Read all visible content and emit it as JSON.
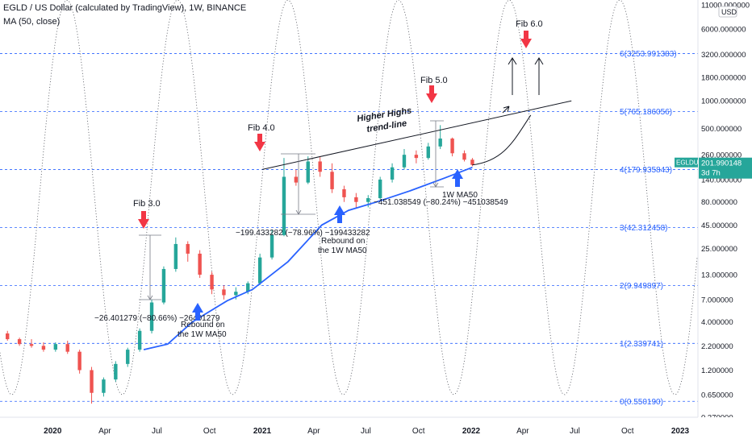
{
  "header": {
    "symbol_line": "EGLD / US Dollar (calculated by TradingView), 1W, BINANCE",
    "indicator_line": "MA (50, close)"
  },
  "price_axis": {
    "currency": "USD",
    "ticks": [
      "11000.000000",
      "6000.000000",
      "3200.000000",
      "1800.000000",
      "1000.000000",
      "500.000000",
      "260.000000",
      "140.000000",
      "80.000000",
      "45.000000",
      "25.000000",
      "13.000000",
      "7.000000",
      "4.000000",
      "2.200000",
      "1.200000",
      "0.650000",
      "0.370000"
    ],
    "last_price_label": "EGLDUSD",
    "last_price_value": "201.990148",
    "countdown": "3d 7h"
  },
  "time_axis": {
    "ticks": [
      "2020",
      "Apr",
      "Jul",
      "Oct",
      "2021",
      "Apr",
      "Jul",
      "Oct",
      "2022",
      "Apr",
      "Jul",
      "Oct",
      "2023"
    ]
  },
  "fib_levels": [
    {
      "label": "6(3253.991383)",
      "value": 3253.991383
    },
    {
      "label": "5(765.186056)",
      "value": 765.186056
    },
    {
      "label": "4(179.935843)",
      "value": 179.935843
    },
    {
      "label": "3(42.312458)",
      "value": 42.312458
    },
    {
      "label": "2(9.949897)",
      "value": 9.949897
    },
    {
      "label": "1(2.339741)",
      "value": 2.339741
    },
    {
      "label": "0(0.550190)",
      "value": 0.55019
    }
  ],
  "annotations": {
    "fib3": "Fib 3.0",
    "fib4": "Fib 4.0",
    "fib5": "Fib 5.0",
    "fib6": "Fib 6.0",
    "trendline_1": "Higher Highs",
    "trendline_2": "trend-line",
    "measure1": "−26.401279 (−80.66%) −26401279",
    "measure2": "−199.433282 (−78.96%) −199433282",
    "measure3": "−451.038549 (−80.24%) −451038549",
    "rebound1_a": "Rebound on",
    "rebound1_b": "the 1W MA50",
    "rebound2_a": "Rebound on",
    "rebound2_b": "the 1W MA50",
    "ma_label": "1W MA50"
  },
  "colors": {
    "bull": "#26a69a",
    "bear": "#ef5350",
    "ma": "#2962ff",
    "fib": "#2962ff",
    "arrow_red": "#f23645",
    "arrow_blue": "#2962ff",
    "badge": "#26a69a"
  },
  "chart_data": {
    "type": "candlestick",
    "title": "EGLD / US Dollar (calculated by TradingView), 1W, BINANCE",
    "scale": "log",
    "ylim": [
      0.37,
      11000
    ],
    "xlim": [
      "2019-10-01",
      "2023-02-01"
    ],
    "candles": [
      {
        "date": "2019-10-14",
        "o": 3.0,
        "h": 3.2,
        "l": 2.5,
        "c": 2.6
      },
      {
        "date": "2019-11-04",
        "o": 2.6,
        "h": 2.7,
        "l": 2.2,
        "c": 2.3
      },
      {
        "date": "2019-11-25",
        "o": 2.3,
        "h": 2.6,
        "l": 2.1,
        "c": 2.2
      },
      {
        "date": "2019-12-16",
        "o": 2.2,
        "h": 2.4,
        "l": 1.9,
        "c": 2.0
      },
      {
        "date": "2020-01-06",
        "o": 2.0,
        "h": 2.4,
        "l": 1.9,
        "c": 2.3
      },
      {
        "date": "2020-01-27",
        "o": 2.3,
        "h": 2.5,
        "l": 1.8,
        "c": 1.9
      },
      {
        "date": "2020-02-17",
        "o": 1.9,
        "h": 2.0,
        "l": 1.1,
        "c": 1.2
      },
      {
        "date": "2020-03-09",
        "o": 1.2,
        "h": 1.3,
        "l": 0.52,
        "c": 0.68
      },
      {
        "date": "2020-03-30",
        "o": 0.68,
        "h": 1.0,
        "l": 0.62,
        "c": 0.95
      },
      {
        "date": "2020-04-20",
        "o": 0.95,
        "h": 1.5,
        "l": 0.9,
        "c": 1.4
      },
      {
        "date": "2020-05-11",
        "o": 1.4,
        "h": 2.1,
        "l": 1.3,
        "c": 2.0
      },
      {
        "date": "2020-06-01",
        "o": 2.0,
        "h": 3.4,
        "l": 1.9,
        "c": 3.2
      },
      {
        "date": "2020-06-22",
        "o": 3.2,
        "h": 7.0,
        "l": 3.0,
        "c": 6.5
      },
      {
        "date": "2020-07-13",
        "o": 6.5,
        "h": 16.0,
        "l": 6.2,
        "c": 15.0
      },
      {
        "date": "2020-08-03",
        "o": 15.0,
        "h": 33.0,
        "l": 14.0,
        "c": 28.0
      },
      {
        "date": "2020-08-24",
        "o": 28.0,
        "h": 30.0,
        "l": 18.0,
        "c": 22.0
      },
      {
        "date": "2020-09-14",
        "o": 22.0,
        "h": 24.0,
        "l": 12.0,
        "c": 13.0
      },
      {
        "date": "2020-10-05",
        "o": 13.0,
        "h": 14.0,
        "l": 8.0,
        "c": 9.0
      },
      {
        "date": "2020-10-26",
        "o": 9.0,
        "h": 10.0,
        "l": 7.0,
        "c": 7.8
      },
      {
        "date": "2020-11-16",
        "o": 7.8,
        "h": 9.5,
        "l": 7.0,
        "c": 8.5
      },
      {
        "date": "2020-12-07",
        "o": 8.5,
        "h": 11.0,
        "l": 8.0,
        "c": 10.5
      },
      {
        "date": "2020-12-28",
        "o": 10.5,
        "h": 22.0,
        "l": 10.0,
        "c": 20.0
      },
      {
        "date": "2021-01-18",
        "o": 20.0,
        "h": 40.0,
        "l": 19.0,
        "c": 35.0
      },
      {
        "date": "2021-02-08",
        "o": 35.0,
        "h": 240.0,
        "l": 34.0,
        "c": 150.0
      },
      {
        "date": "2021-03-01",
        "o": 150.0,
        "h": 180.0,
        "l": 120.0,
        "c": 130.0
      },
      {
        "date": "2021-03-22",
        "o": 130.0,
        "h": 250.0,
        "l": 125.0,
        "c": 220.0
      },
      {
        "date": "2021-04-12",
        "o": 220.0,
        "h": 245.0,
        "l": 150.0,
        "c": 170.0
      },
      {
        "date": "2021-05-03",
        "o": 170.0,
        "h": 210.0,
        "l": 100.0,
        "c": 110.0
      },
      {
        "date": "2021-05-24",
        "o": 110.0,
        "h": 120.0,
        "l": 80.0,
        "c": 90.0
      },
      {
        "date": "2021-06-14",
        "o": 90.0,
        "h": 100.0,
        "l": 68.0,
        "c": 80.0
      },
      {
        "date": "2021-07-05",
        "o": 80.0,
        "h": 95.0,
        "l": 70.0,
        "c": 88.0
      },
      {
        "date": "2021-07-26",
        "o": 88.0,
        "h": 150.0,
        "l": 85.0,
        "c": 140.0
      },
      {
        "date": "2021-08-16",
        "o": 140.0,
        "h": 210.0,
        "l": 130.0,
        "c": 190.0
      },
      {
        "date": "2021-09-06",
        "o": 190.0,
        "h": 300.0,
        "l": 180.0,
        "c": 260.0
      },
      {
        "date": "2021-09-27",
        "o": 260.0,
        "h": 290.0,
        "l": 210.0,
        "c": 240.0
      },
      {
        "date": "2021-10-18",
        "o": 240.0,
        "h": 350.0,
        "l": 230.0,
        "c": 320.0
      },
      {
        "date": "2021-11-08",
        "o": 320.0,
        "h": 545.0,
        "l": 300.0,
        "c": 390.0
      },
      {
        "date": "2021-11-29",
        "o": 390.0,
        "h": 400.0,
        "l": 250.0,
        "c": 270.0
      },
      {
        "date": "2021-12-20",
        "o": 270.0,
        "h": 290.0,
        "l": 220.0,
        "c": 230.0
      },
      {
        "date": "2022-01-03",
        "o": 230.0,
        "h": 240.0,
        "l": 195.0,
        "c": 202.0
      }
    ],
    "ma50": [
      {
        "date": "2020-06-08",
        "v": 2.0
      },
      {
        "date": "2020-07-20",
        "v": 2.3
      },
      {
        "date": "2020-09-01",
        "v": 4.0
      },
      {
        "date": "2020-11-01",
        "v": 6.8
      },
      {
        "date": "2020-12-15",
        "v": 9.0
      },
      {
        "date": "2021-02-15",
        "v": 18.0
      },
      {
        "date": "2021-04-15",
        "v": 45.0
      },
      {
        "date": "2021-06-01",
        "v": 65.0
      },
      {
        "date": "2021-07-20",
        "v": 80.0
      },
      {
        "date": "2021-09-15",
        "v": 105.0
      },
      {
        "date": "2021-11-15",
        "v": 145.0
      },
      {
        "date": "2022-01-03",
        "v": 190.0
      }
    ],
    "projection": [
      {
        "date": "2022-01-03",
        "v": 202.0
      },
      {
        "date": "2022-02-15",
        "v": 260.0
      },
      {
        "date": "2022-03-20",
        "v": 400.0
      },
      {
        "date": "2022-04-15",
        "v": 700.0
      }
    ],
    "trendline": [
      {
        "date": "2021-01-01",
        "v": 180.0
      },
      {
        "date": "2022-06-25",
        "v": 1000.0
      }
    ]
  }
}
